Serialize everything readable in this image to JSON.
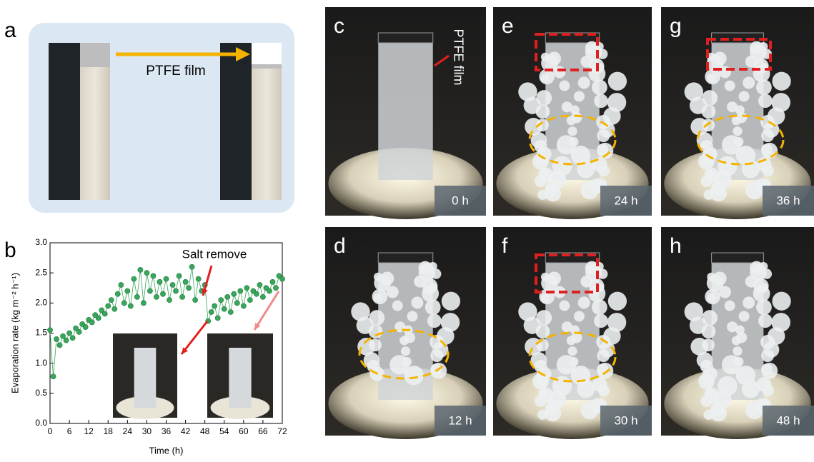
{
  "panel_labels": [
    "a",
    "b",
    "c",
    "d",
    "e",
    "f",
    "g",
    "h"
  ],
  "schematic": {
    "label": "PTFE film"
  },
  "photos": [
    {
      "time": "0 h",
      "annotation": "PTFE film"
    },
    {
      "time": "12 h"
    },
    {
      "time": "24 h"
    },
    {
      "time": "30 h"
    },
    {
      "time": "36 h"
    },
    {
      "time": "48 h"
    }
  ],
  "chart_data": {
    "type": "scatter",
    "xlabel": "Time (h)",
    "ylabel": "Evaporation rate (kg m⁻² h⁻¹)",
    "annotation": "Salt remove",
    "xlim": [
      0,
      72
    ],
    "ylim": [
      0,
      3
    ],
    "xticks": [
      0,
      6,
      12,
      18,
      24,
      30,
      36,
      42,
      48,
      54,
      60,
      66,
      72
    ],
    "yticks": [
      {
        "value": 0,
        "label": "0.0"
      },
      0.5,
      {
        "value": 1,
        "label": "1.0"
      },
      1.5,
      {
        "value": 2,
        "label": "2.0"
      },
      2.5,
      {
        "value": 3,
        "label": "3.0"
      }
    ],
    "series": [
      {
        "color": "#3aa55c",
        "x": [
          0,
          1,
          2,
          3,
          4,
          5,
          6,
          7,
          8,
          9,
          10,
          11,
          12,
          13,
          14,
          15,
          16,
          17,
          18,
          19,
          20,
          21,
          22,
          23,
          24,
          25,
          26,
          27,
          28,
          29,
          30,
          31,
          32,
          33,
          34,
          35,
          36,
          37,
          38,
          39,
          40,
          41,
          42,
          43,
          44,
          45,
          46,
          47,
          48,
          49,
          50,
          51,
          52,
          53,
          54,
          55,
          56,
          57,
          58,
          59,
          60,
          61,
          62,
          63,
          64,
          65,
          66,
          67,
          68,
          69,
          70,
          71,
          72
        ],
        "values": [
          1.55,
          0.78,
          1.4,
          1.3,
          1.45,
          1.38,
          1.5,
          1.42,
          1.58,
          1.52,
          1.65,
          1.6,
          1.72,
          1.68,
          1.8,
          1.75,
          1.88,
          1.82,
          1.95,
          2.05,
          1.9,
          2.15,
          2.3,
          2.0,
          2.2,
          1.95,
          2.4,
          2.1,
          2.55,
          2.0,
          2.5,
          2.2,
          2.45,
          2.1,
          2.35,
          2.15,
          2.4,
          2.05,
          2.3,
          2.2,
          2.45,
          2.1,
          2.35,
          2.25,
          2.6,
          2.05,
          2.4,
          2.2,
          2.3,
          1.7,
          1.85,
          1.95,
          1.75,
          2.05,
          1.9,
          2.1,
          1.85,
          2.15,
          2.0,
          2.2,
          1.95,
          2.25,
          2.05,
          2.2,
          2.15,
          2.3,
          2.1,
          2.25,
          2.2,
          2.35,
          2.25,
          2.45,
          2.4
        ]
      }
    ]
  }
}
